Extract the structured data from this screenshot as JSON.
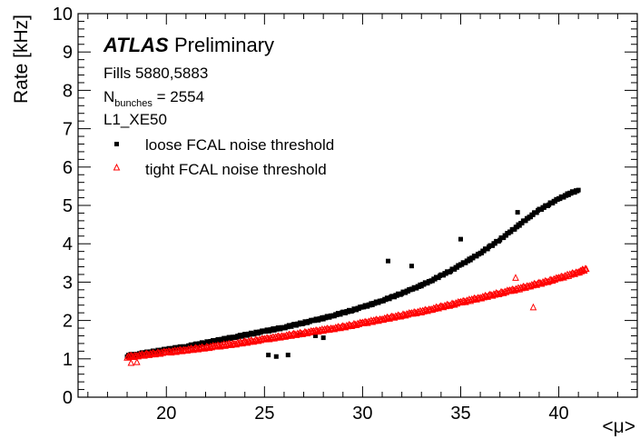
{
  "chart_data": {
    "type": "scatter",
    "xlabel": "<μ>",
    "ylabel": "Rate [kHz]",
    "xlim": [
      15.5,
      44
    ],
    "ylim": [
      0,
      10
    ],
    "x_ticks": [
      "20",
      "25",
      "30",
      "35",
      "40"
    ],
    "y_ticks": [
      "0",
      "1",
      "2",
      "3",
      "4",
      "5",
      "6",
      "7",
      "8",
      "9",
      "10"
    ],
    "grid": false,
    "legend_position": "top-left",
    "annotations": {
      "experiment": "ATLAS",
      "status": "Preliminary",
      "fills": "Fills 5880,5883",
      "nbunches_prefix": "N",
      "nbunches_sub": "bunches",
      "nbunches_suffix": " = 2554",
      "trigger": "L1_XE50"
    },
    "series": [
      {
        "name": "loose FCAL noise threshold",
        "marker": "square",
        "color": "#000000",
        "x": [
          18.0,
          18.5,
          19.0,
          19.5,
          20.0,
          20.5,
          21.0,
          21.5,
          22.0,
          22.5,
          23.0,
          23.5,
          24.0,
          24.5,
          25.0,
          25.5,
          26.0,
          26.5,
          27.0,
          27.5,
          28.0,
          28.5,
          29.0,
          29.5,
          30.0,
          30.5,
          31.0,
          31.5,
          32.0,
          32.5,
          33.0,
          33.5,
          34.0,
          34.5,
          35.0,
          35.5,
          36.0,
          36.5,
          37.0,
          37.5,
          38.0,
          38.5,
          39.0,
          39.5,
          40.0,
          40.5,
          41.0,
          25.2,
          25.6,
          26.2,
          26.8,
          27.6,
          28.0,
          31.3,
          32.5,
          35.0,
          37.9
        ],
        "y": [
          1.08,
          1.12,
          1.16,
          1.2,
          1.24,
          1.28,
          1.32,
          1.37,
          1.42,
          1.47,
          1.52,
          1.57,
          1.62,
          1.67,
          1.72,
          1.77,
          1.82,
          1.88,
          1.94,
          2.0,
          2.06,
          2.13,
          2.2,
          2.27,
          2.35,
          2.43,
          2.52,
          2.61,
          2.71,
          2.81,
          2.92,
          3.04,
          3.17,
          3.3,
          3.45,
          3.6,
          3.76,
          3.93,
          4.11,
          4.3,
          4.5,
          4.7,
          4.88,
          5.03,
          5.17,
          5.3,
          5.4,
          1.1,
          1.06,
          1.1,
          1.62,
          1.6,
          1.55,
          3.55,
          3.42,
          4.12,
          4.82
        ]
      },
      {
        "name": "tight FCAL noise threshold",
        "marker": "triangle-open",
        "color": "#ff0000",
        "x": [
          18.0,
          18.5,
          19.0,
          19.5,
          20.0,
          20.5,
          21.0,
          21.5,
          22.0,
          22.5,
          23.0,
          23.5,
          24.0,
          24.5,
          25.0,
          25.5,
          26.0,
          26.5,
          27.0,
          27.5,
          28.0,
          28.5,
          29.0,
          29.5,
          30.0,
          30.5,
          31.0,
          31.5,
          32.0,
          32.5,
          33.0,
          33.5,
          34.0,
          34.5,
          35.0,
          35.5,
          36.0,
          36.5,
          37.0,
          37.5,
          38.0,
          38.5,
          39.0,
          39.5,
          40.0,
          40.5,
          41.0,
          41.4,
          18.2,
          18.5,
          38.7,
          37.8
        ],
        "y": [
          1.06,
          1.09,
          1.12,
          1.15,
          1.18,
          1.21,
          1.24,
          1.27,
          1.3,
          1.33,
          1.37,
          1.4,
          1.44,
          1.48,
          1.52,
          1.56,
          1.6,
          1.64,
          1.68,
          1.72,
          1.76,
          1.8,
          1.84,
          1.89,
          1.94,
          1.99,
          2.04,
          2.09,
          2.14,
          2.19,
          2.24,
          2.3,
          2.36,
          2.42,
          2.48,
          2.54,
          2.6,
          2.66,
          2.72,
          2.78,
          2.84,
          2.91,
          2.97,
          3.04,
          3.11,
          3.19,
          3.27,
          3.35,
          0.9,
          0.92,
          2.35,
          3.12
        ]
      }
    ]
  }
}
